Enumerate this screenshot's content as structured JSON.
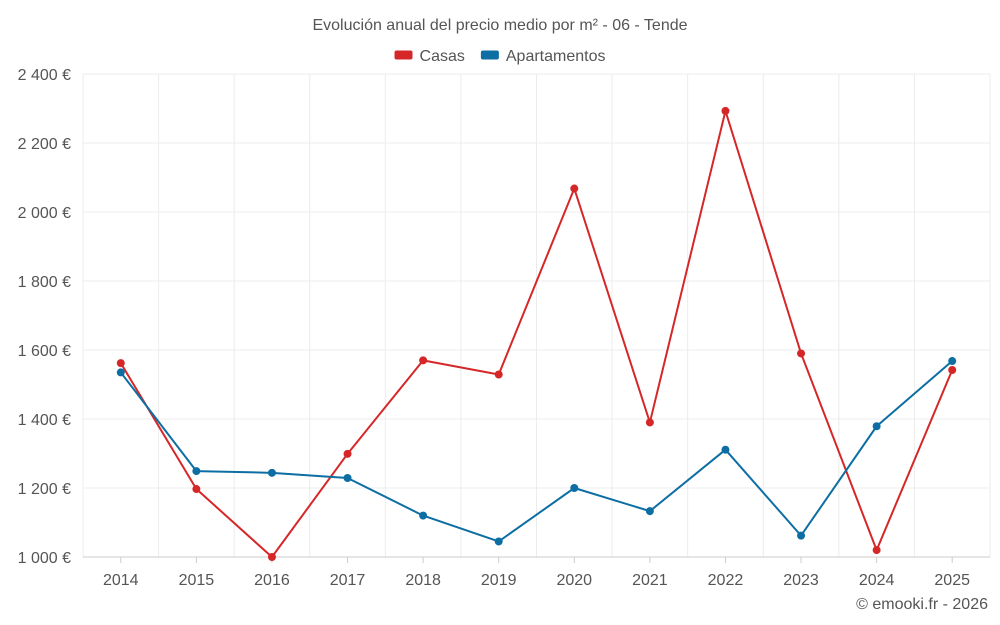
{
  "chart_data": {
    "type": "line",
    "title": "Evolución anual del precio medio por m² - 06 - Tende",
    "categories": [
      "2014",
      "2015",
      "2016",
      "2017",
      "2018",
      "2019",
      "2020",
      "2021",
      "2022",
      "2023",
      "2024",
      "2025"
    ],
    "series": [
      {
        "name": "Casas",
        "color": "#d62728",
        "values": [
          1562,
          1197,
          1000,
          1299,
          1570,
          1529,
          2068,
          1390,
          2293,
          1590,
          1020,
          1542
        ]
      },
      {
        "name": "Apartamentos",
        "color": "#0d6ea3",
        "values": [
          1535,
          1249,
          1244,
          1229,
          1120,
          1045,
          1200,
          1133,
          1311,
          1062,
          1379,
          1568
        ]
      }
    ],
    "ylim": [
      1000,
      2400
    ],
    "yticks": [
      1000,
      1200,
      1400,
      1600,
      1800,
      2000,
      2200,
      2400
    ],
    "ytick_labels": [
      "1 000 €",
      "1 200 €",
      "1 400 €",
      "1 600 €",
      "1 800 €",
      "2 000 €",
      "2 200 €",
      "2 400 €"
    ],
    "xlabel": "",
    "ylabel": "",
    "grid": true,
    "legend_position": "top-center"
  },
  "credit": "© emooki.fr - 2026"
}
